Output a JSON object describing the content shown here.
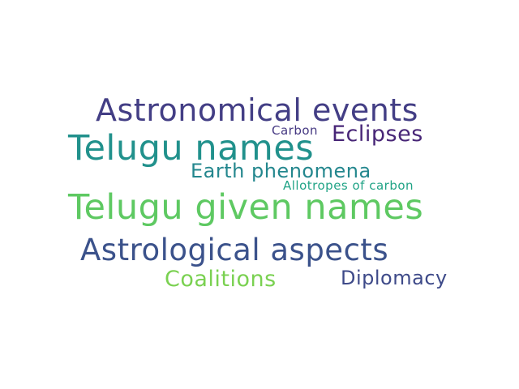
{
  "word_cloud": {
    "words": [
      {
        "text": "Astronomical events",
        "color": "#433e85"
      },
      {
        "text": "Telugu names",
        "color": "#21918c"
      },
      {
        "text": "Carbon",
        "color": "#453882"
      },
      {
        "text": "Eclipses",
        "color": "#482677"
      },
      {
        "text": "Earth phenomena",
        "color": "#24878e"
      },
      {
        "text": "Allotropes of carbon",
        "color": "#20a386"
      },
      {
        "text": "Telugu given names",
        "color": "#5ec962"
      },
      {
        "text": "Astrological aspects",
        "color": "#3b528b"
      },
      {
        "text": "Coalitions",
        "color": "#7ad151"
      },
      {
        "text": "Diplomacy",
        "color": "#3e4a89"
      }
    ]
  }
}
